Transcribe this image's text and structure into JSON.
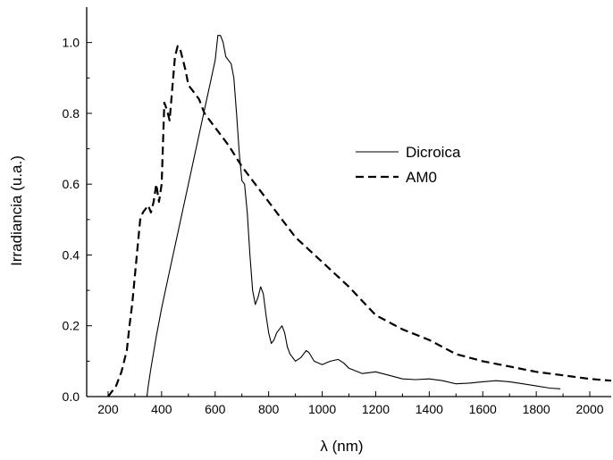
{
  "chart_data": {
    "type": "line",
    "title": "",
    "xlabel": "λ (nm)",
    "ylabel": "Irradiancia (u.a.)",
    "xlim": [
      120,
      2080
    ],
    "ylim": [
      0,
      1.1
    ],
    "xticks": [
      200,
      400,
      600,
      800,
      1000,
      1200,
      1400,
      1600,
      1800,
      2000
    ],
    "yticks": [
      0.0,
      0.2,
      0.4,
      0.6,
      0.8,
      1.0
    ],
    "ytick_labels": [
      "0.0",
      "0.2",
      "0.4",
      "0.6",
      "0.8",
      "1.0"
    ],
    "grid": false,
    "legend_position": "center-right",
    "series": [
      {
        "name": "Dicroica",
        "style": "solid",
        "color": "#000000",
        "x": [
          345,
          350,
          360,
          380,
          400,
          420,
          440,
          460,
          480,
          500,
          520,
          540,
          560,
          580,
          600,
          610,
          620,
          630,
          640,
          660,
          670,
          680,
          690,
          700,
          710,
          720,
          730,
          740,
          750,
          760,
          770,
          780,
          790,
          800,
          810,
          820,
          830,
          850,
          860,
          870,
          880,
          900,
          920,
          940,
          950,
          970,
          1000,
          1030,
          1060,
          1080,
          1100,
          1150,
          1200,
          1250,
          1300,
          1350,
          1400,
          1450,
          1500,
          1550,
          1600,
          1650,
          1700,
          1750,
          1800,
          1850,
          1890
        ],
        "y": [
          0.0,
          0.03,
          0.08,
          0.17,
          0.25,
          0.32,
          0.39,
          0.46,
          0.53,
          0.6,
          0.67,
          0.74,
          0.81,
          0.88,
          0.95,
          1.02,
          1.02,
          1.0,
          0.96,
          0.94,
          0.9,
          0.8,
          0.69,
          0.61,
          0.6,
          0.52,
          0.4,
          0.3,
          0.26,
          0.28,
          0.31,
          0.29,
          0.23,
          0.18,
          0.15,
          0.16,
          0.18,
          0.2,
          0.18,
          0.14,
          0.12,
          0.1,
          0.11,
          0.13,
          0.125,
          0.1,
          0.09,
          0.1,
          0.105,
          0.095,
          0.08,
          0.065,
          0.07,
          0.06,
          0.05,
          0.048,
          0.05,
          0.045,
          0.036,
          0.038,
          0.042,
          0.045,
          0.042,
          0.036,
          0.03,
          0.024,
          0.022
        ]
      },
      {
        "name": "AM0",
        "style": "dashed",
        "color": "#000000",
        "x": [
          200,
          210,
          230,
          250,
          270,
          280,
          290,
          300,
          310,
          320,
          330,
          340,
          350,
          360,
          370,
          380,
          390,
          400,
          410,
          420,
          430,
          440,
          450,
          460,
          470,
          480,
          490,
          500,
          520,
          540,
          560,
          600,
          650,
          700,
          750,
          800,
          850,
          900,
          1000,
          1100,
          1200,
          1300,
          1400,
          1500,
          1600,
          1700,
          1800,
          1900,
          2000,
          2080
        ],
        "y": [
          0.0,
          0.01,
          0.03,
          0.07,
          0.13,
          0.2,
          0.26,
          0.34,
          0.42,
          0.5,
          0.52,
          0.53,
          0.54,
          0.52,
          0.55,
          0.6,
          0.55,
          0.6,
          0.83,
          0.81,
          0.78,
          0.87,
          0.96,
          0.99,
          0.98,
          0.95,
          0.92,
          0.88,
          0.86,
          0.84,
          0.8,
          0.76,
          0.71,
          0.65,
          0.6,
          0.55,
          0.5,
          0.45,
          0.38,
          0.31,
          0.23,
          0.19,
          0.16,
          0.12,
          0.1,
          0.085,
          0.07,
          0.06,
          0.05,
          0.045
        ]
      }
    ]
  }
}
